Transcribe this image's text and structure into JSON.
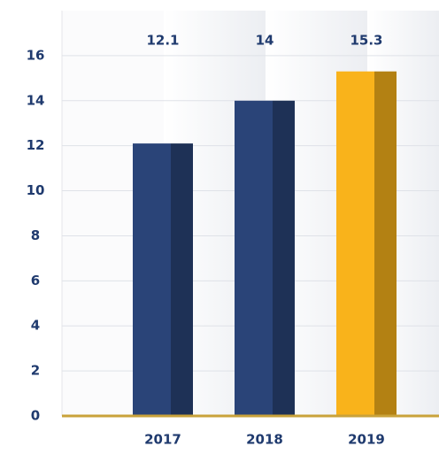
{
  "chart_data": {
    "type": "bar",
    "categories": [
      "2017",
      "2018",
      "2019"
    ],
    "values": [
      12.1,
      14,
      15.3
    ],
    "colors": [
      "#2a4478",
      "#2a4478",
      "#f9b31b"
    ],
    "ylim": [
      0,
      18
    ],
    "yticks": [
      0,
      2,
      4,
      6,
      8,
      10,
      12,
      14,
      16
    ],
    "grid": true
  }
}
